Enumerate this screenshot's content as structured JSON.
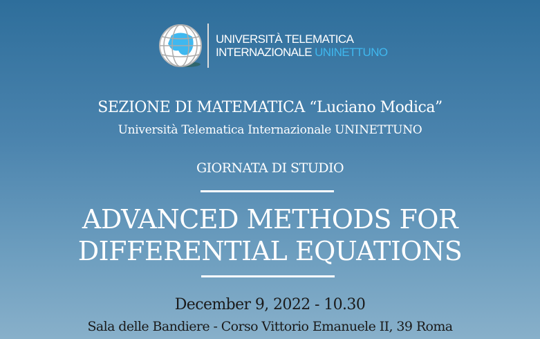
{
  "logo": {
    "line1": "UNIVERSITÀ TELEMATICA",
    "line2_white": "INTERNAZIONALE ",
    "line2_blue": "UNINETTUNO",
    "accent": "#3fb8ef",
    "icon": "globe-icon"
  },
  "section": "SEZIONE DI MATEMATICA “Luciano Modica”",
  "university": "Università Telematica Internazionale UNINETTUNO",
  "event_type": "GIORNATA DI STUDIO",
  "title_line1": "ADVANCED METHODS FOR",
  "title_line2": "DIFFERENTIAL EQUATIONS",
  "date": "December 9, 2022 - 10.30",
  "venue": "Sala delle Bandiere - Corso Vittorio Emanuele II, 39 Roma"
}
